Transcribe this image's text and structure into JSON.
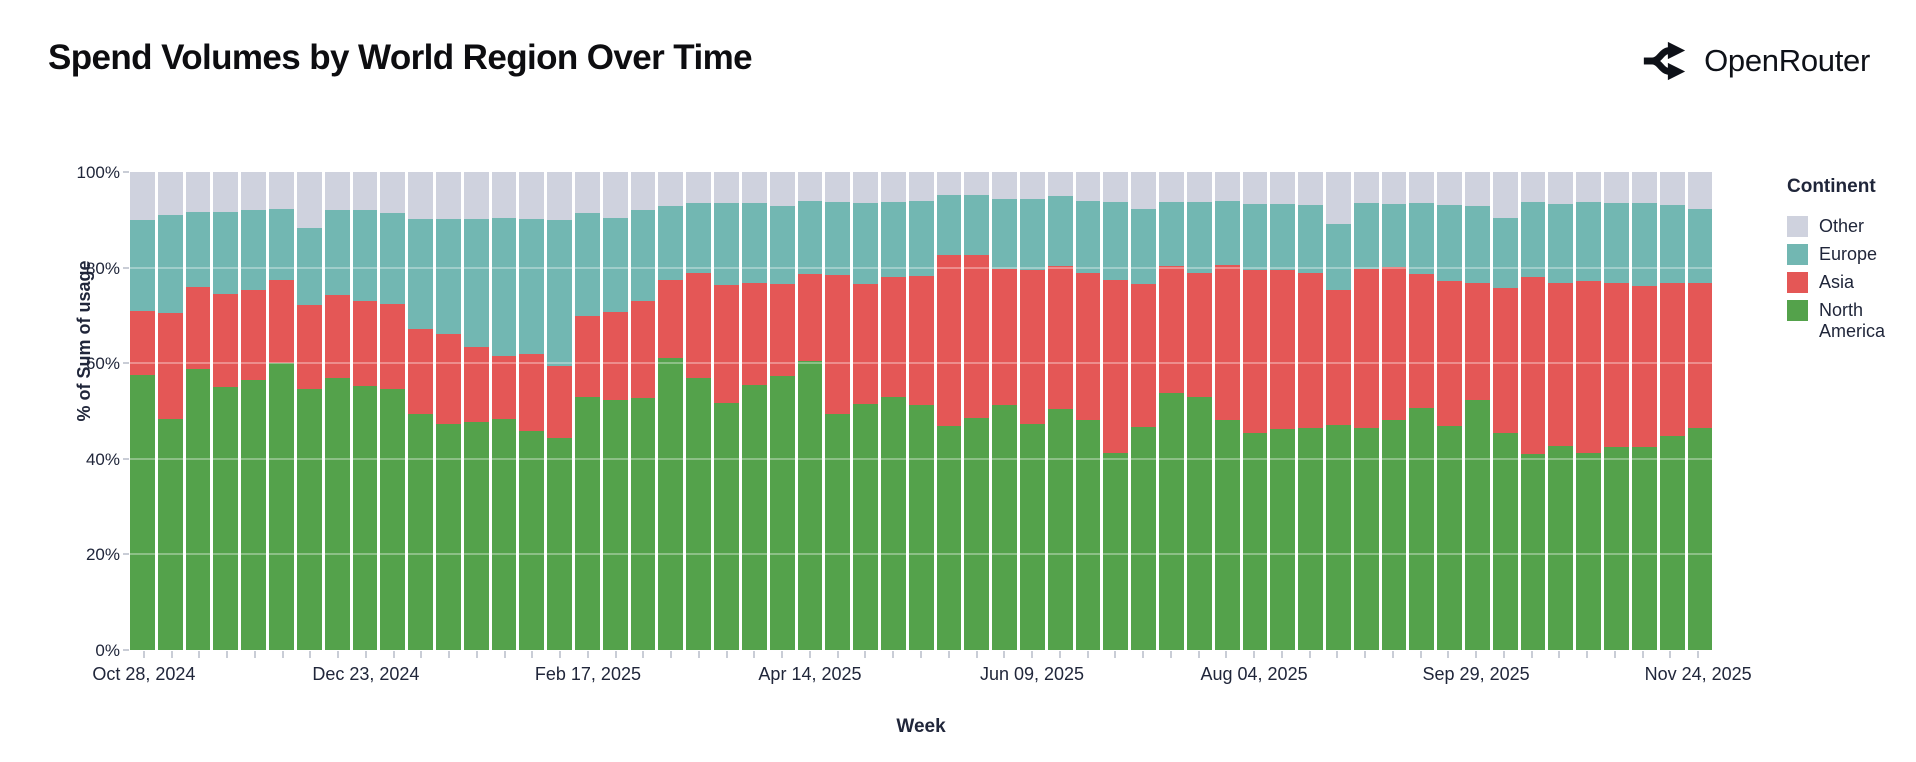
{
  "header": {
    "title": "Spend Volumes by World Region Over Time",
    "brand": "OpenRouter"
  },
  "axes": {
    "y_title": "% of Sum of usage",
    "x_title": "Week",
    "y_ticks": [
      "100%",
      "80%",
      "60%",
      "40%",
      "20%",
      "0%"
    ],
    "x_ticks": [
      "Oct 28, 2024",
      "Dec 23, 2024",
      "Feb 17, 2025",
      "Apr 14, 2025",
      "Jun 09, 2025",
      "Aug 04, 2025",
      "Sep 29, 2025",
      "Nov 24, 2025"
    ],
    "x_tick_bar_indices": [
      1,
      9,
      17,
      25,
      33,
      41,
      49,
      57
    ]
  },
  "legend": {
    "title": "Continent",
    "items": [
      {
        "label": "Other",
        "key": "other",
        "color": "#cfd2de"
      },
      {
        "label": "Europe",
        "key": "europe",
        "color": "#72b7b2"
      },
      {
        "label": "Asia",
        "key": "asia",
        "color": "#e45756"
      },
      {
        "label": "North America",
        "key": "north_america",
        "color": "#54a24b"
      }
    ]
  },
  "chart_data": {
    "type": "bar",
    "stacked": true,
    "normalized": true,
    "title": "Spend Volumes by World Region Over Time",
    "xlabel": "Week",
    "ylabel": "% of Sum of usage",
    "ylim": [
      0,
      100
    ],
    "grid": "horizontal-light",
    "legend_position": "right",
    "stack_order_bottom_to_top": [
      "north_america",
      "asia",
      "europe",
      "other"
    ],
    "weeks": [
      {
        "date": "Oct 28, 2024",
        "north_america": 57.5,
        "asia": 13.5,
        "europe": 19.0,
        "other": 10.0
      },
      {
        "date": "Nov 04, 2024",
        "north_america": 48.3,
        "asia": 22.2,
        "europe": 20.5,
        "other": 9.0
      },
      {
        "date": "Nov 11, 2024",
        "north_america": 58.7,
        "asia": 17.3,
        "europe": 15.6,
        "other": 8.4
      },
      {
        "date": "Nov 18, 2024",
        "north_america": 55.0,
        "asia": 19.5,
        "europe": 17.1,
        "other": 8.4
      },
      {
        "date": "Nov 25, 2024",
        "north_america": 56.5,
        "asia": 18.9,
        "europe": 16.6,
        "other": 8.0
      },
      {
        "date": "Dec 02, 2024",
        "north_america": 60.0,
        "asia": 17.4,
        "europe": 14.9,
        "other": 7.7
      },
      {
        "date": "Dec 09, 2024",
        "north_america": 54.7,
        "asia": 17.5,
        "europe": 16.1,
        "other": 11.7
      },
      {
        "date": "Dec 16, 2024",
        "north_america": 57.0,
        "asia": 17.2,
        "europe": 17.8,
        "other": 8.0
      },
      {
        "date": "Dec 23, 2024",
        "north_america": 55.2,
        "asia": 17.9,
        "europe": 19.0,
        "other": 7.9
      },
      {
        "date": "Dec 30, 2024",
        "north_america": 54.7,
        "asia": 17.7,
        "europe": 19.1,
        "other": 8.5
      },
      {
        "date": "Jan 06, 2025",
        "north_america": 49.4,
        "asia": 17.8,
        "europe": 23.0,
        "other": 9.8
      },
      {
        "date": "Jan 13, 2025",
        "north_america": 47.3,
        "asia": 18.9,
        "europe": 24.0,
        "other": 9.8
      },
      {
        "date": "Jan 20, 2025",
        "north_america": 47.6,
        "asia": 15.7,
        "europe": 26.8,
        "other": 9.9
      },
      {
        "date": "Jan 27, 2025",
        "north_america": 48.4,
        "asia": 13.1,
        "europe": 28.9,
        "other": 9.6
      },
      {
        "date": "Feb 03, 2025",
        "north_america": 45.8,
        "asia": 16.2,
        "europe": 28.1,
        "other": 9.9
      },
      {
        "date": "Feb 10, 2025",
        "north_america": 44.3,
        "asia": 15.2,
        "europe": 30.5,
        "other": 10.0
      },
      {
        "date": "Feb 17, 2025",
        "north_america": 53.0,
        "asia": 16.8,
        "europe": 21.6,
        "other": 8.6
      },
      {
        "date": "Feb 24, 2025",
        "north_america": 52.3,
        "asia": 18.4,
        "europe": 19.6,
        "other": 9.7
      },
      {
        "date": "Mar 03, 2025",
        "north_america": 52.7,
        "asia": 20.3,
        "europe": 19.1,
        "other": 7.9
      },
      {
        "date": "Mar 10, 2025",
        "north_america": 61.1,
        "asia": 16.4,
        "europe": 15.4,
        "other": 7.1
      },
      {
        "date": "Mar 17, 2025",
        "north_america": 57.0,
        "asia": 21.8,
        "europe": 14.8,
        "other": 6.4
      },
      {
        "date": "Mar 24, 2025",
        "north_america": 51.7,
        "asia": 24.6,
        "europe": 17.3,
        "other": 6.4
      },
      {
        "date": "Mar 31, 2025",
        "north_america": 55.5,
        "asia": 21.3,
        "europe": 16.8,
        "other": 6.4
      },
      {
        "date": "Apr 07, 2025",
        "north_america": 57.3,
        "asia": 19.2,
        "europe": 16.4,
        "other": 7.1
      },
      {
        "date": "Apr 14, 2025",
        "north_america": 60.4,
        "asia": 18.3,
        "europe": 15.3,
        "other": 6.0
      },
      {
        "date": "Apr 21, 2025",
        "north_america": 49.4,
        "asia": 29.0,
        "europe": 15.4,
        "other": 6.2
      },
      {
        "date": "Apr 28, 2025",
        "north_america": 51.4,
        "asia": 25.2,
        "europe": 17.0,
        "other": 6.4
      },
      {
        "date": "May 05, 2025",
        "north_america": 53.0,
        "asia": 25.0,
        "europe": 15.7,
        "other": 6.3
      },
      {
        "date": "May 12, 2025",
        "north_america": 51.2,
        "asia": 27.0,
        "europe": 15.8,
        "other": 6.0
      },
      {
        "date": "May 19, 2025",
        "north_america": 46.8,
        "asia": 35.8,
        "europe": 12.6,
        "other": 4.8
      },
      {
        "date": "May 26, 2025",
        "north_america": 48.6,
        "asia": 34.1,
        "europe": 12.6,
        "other": 4.7
      },
      {
        "date": "Jun 02, 2025",
        "north_america": 51.2,
        "asia": 28.6,
        "europe": 14.5,
        "other": 5.7
      },
      {
        "date": "Jun 09, 2025",
        "north_america": 47.2,
        "asia": 32.4,
        "europe": 14.7,
        "other": 5.7
      },
      {
        "date": "Jun 16, 2025",
        "north_america": 50.5,
        "asia": 29.8,
        "europe": 14.7,
        "other": 5.0
      },
      {
        "date": "Jun 23, 2025",
        "north_america": 48.1,
        "asia": 30.8,
        "europe": 15.1,
        "other": 6.0
      },
      {
        "date": "Jun 30, 2025",
        "north_america": 41.2,
        "asia": 36.2,
        "europe": 16.4,
        "other": 6.2
      },
      {
        "date": "Jul 07, 2025",
        "north_america": 46.6,
        "asia": 30.0,
        "europe": 15.6,
        "other": 7.8
      },
      {
        "date": "Jul 14, 2025",
        "north_america": 53.8,
        "asia": 26.5,
        "europe": 13.4,
        "other": 6.3
      },
      {
        "date": "Jul 21, 2025",
        "north_america": 52.9,
        "asia": 26.0,
        "europe": 14.9,
        "other": 6.2
      },
      {
        "date": "Jul 28, 2025",
        "north_america": 48.1,
        "asia": 32.5,
        "europe": 13.4,
        "other": 6.0
      },
      {
        "date": "Aug 04, 2025",
        "north_america": 45.3,
        "asia": 34.2,
        "europe": 13.8,
        "other": 6.7
      },
      {
        "date": "Aug 11, 2025",
        "north_america": 46.3,
        "asia": 33.2,
        "europe": 13.9,
        "other": 6.6
      },
      {
        "date": "Aug 18, 2025",
        "north_america": 46.5,
        "asia": 32.4,
        "europe": 14.2,
        "other": 6.9
      },
      {
        "date": "Aug 25, 2025",
        "north_america": 47.0,
        "asia": 28.3,
        "europe": 13.9,
        "other": 10.8
      },
      {
        "date": "Sep 01, 2025",
        "north_america": 46.5,
        "asia": 33.2,
        "europe": 13.9,
        "other": 6.4
      },
      {
        "date": "Sep 08, 2025",
        "north_america": 48.1,
        "asia": 32.0,
        "europe": 13.3,
        "other": 6.6
      },
      {
        "date": "Sep 15, 2025",
        "north_america": 50.7,
        "asia": 28.0,
        "europe": 14.8,
        "other": 6.5
      },
      {
        "date": "Sep 22, 2025",
        "north_america": 46.8,
        "asia": 30.5,
        "europe": 15.8,
        "other": 6.9
      },
      {
        "date": "Sep 29, 2025",
        "north_america": 52.4,
        "asia": 24.4,
        "europe": 16.0,
        "other": 7.2
      },
      {
        "date": "Oct 06, 2025",
        "north_america": 45.4,
        "asia": 30.3,
        "europe": 14.7,
        "other": 9.6
      },
      {
        "date": "Oct 13, 2025",
        "north_america": 41.0,
        "asia": 37.1,
        "europe": 15.7,
        "other": 6.2
      },
      {
        "date": "Oct 20, 2025",
        "north_america": 42.7,
        "asia": 34.1,
        "europe": 16.6,
        "other": 6.6
      },
      {
        "date": "Oct 27, 2025",
        "north_america": 41.3,
        "asia": 35.8,
        "europe": 16.7,
        "other": 6.2
      },
      {
        "date": "Nov 03, 2025",
        "north_america": 42.4,
        "asia": 34.3,
        "europe": 16.9,
        "other": 6.4
      },
      {
        "date": "Nov 10, 2025",
        "north_america": 42.5,
        "asia": 33.7,
        "europe": 17.4,
        "other": 6.4
      },
      {
        "date": "Nov 17, 2025",
        "north_america": 44.8,
        "asia": 32.0,
        "europe": 16.4,
        "other": 6.8
      },
      {
        "date": "Nov 24, 2025",
        "north_america": 46.5,
        "asia": 30.2,
        "europe": 15.6,
        "other": 7.7
      }
    ]
  }
}
